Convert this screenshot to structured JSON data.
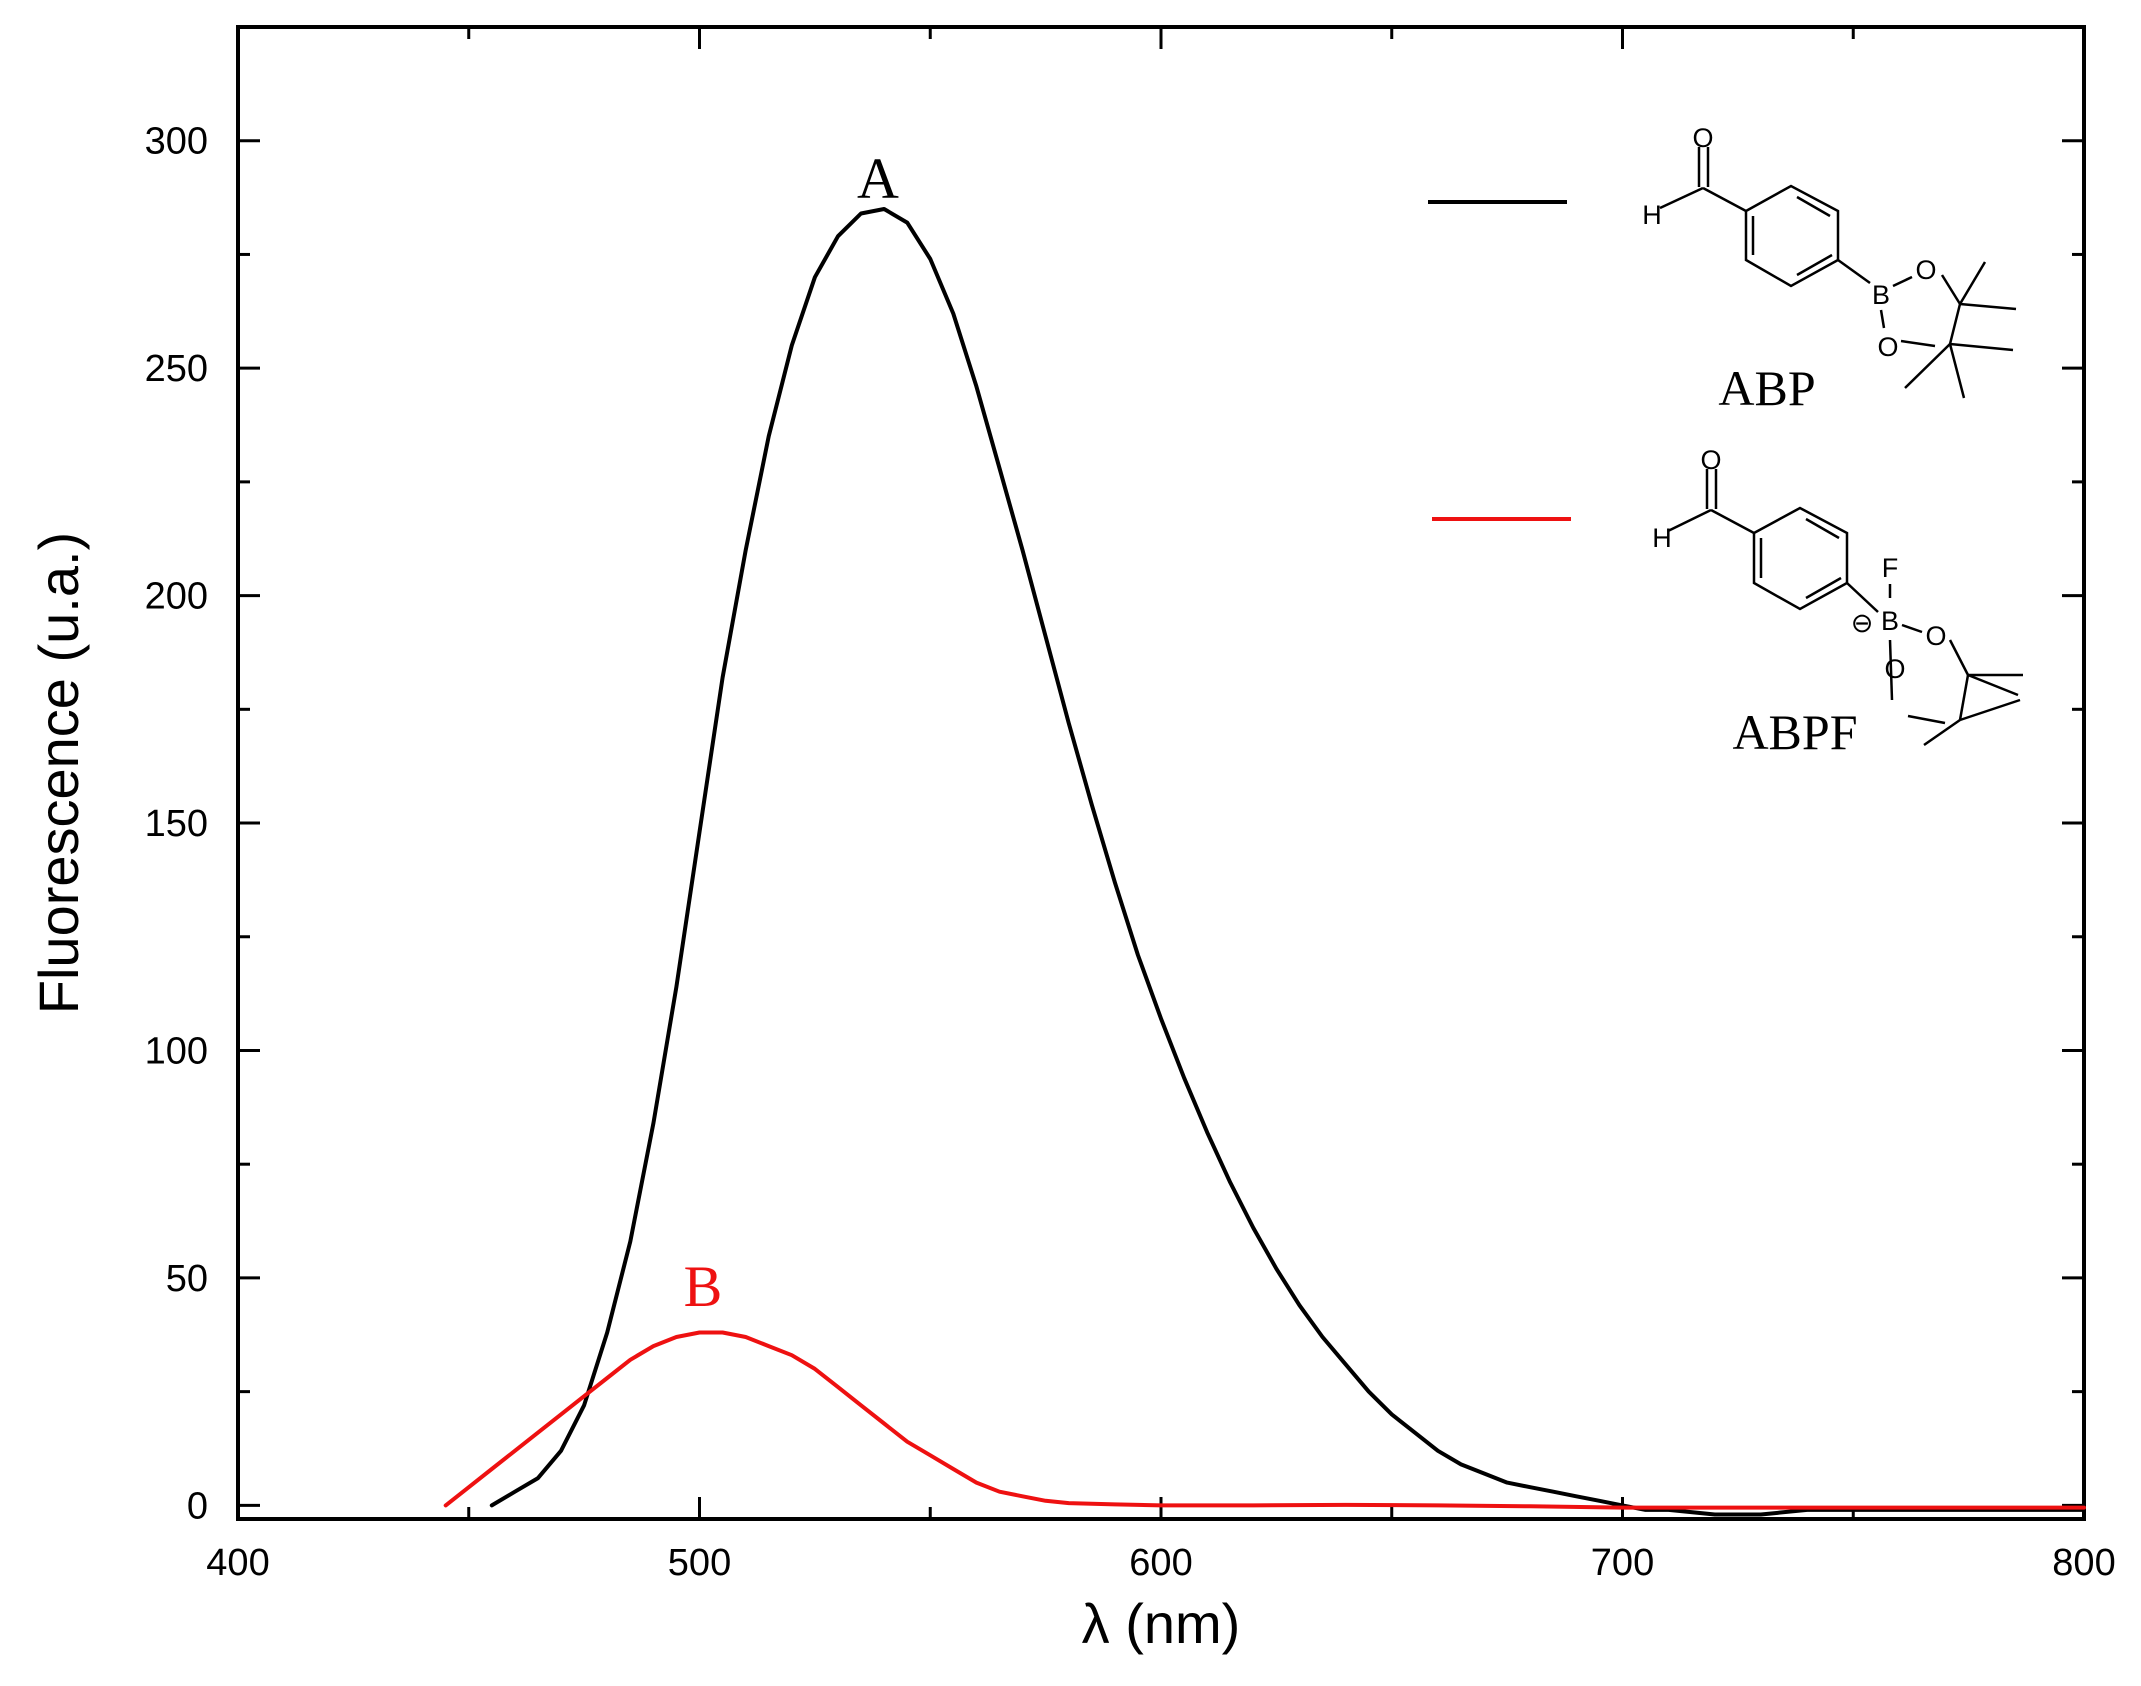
{
  "chart_data": {
    "type": "line",
    "xlabel": "λ (nm)",
    "ylabel": "Fluorescence (u.a.)",
    "xlim": [
      400,
      800
    ],
    "ylim": [
      -3,
      325
    ],
    "x_ticks": [
      "400",
      "500",
      "600",
      "700",
      "800"
    ],
    "y_ticks": [
      "0",
      "50",
      "100",
      "150",
      "200",
      "250",
      "300"
    ],
    "grid": false,
    "legend_position": "top-right",
    "series": [
      {
        "name": "ABP",
        "peak_label": "A",
        "color": "#000000",
        "x": [
          455,
          460,
          465,
          470,
          475,
          480,
          485,
          490,
          495,
          500,
          505,
          510,
          515,
          520,
          525,
          530,
          535,
          540,
          545,
          550,
          555,
          560,
          565,
          570,
          575,
          580,
          585,
          590,
          595,
          600,
          605,
          610,
          615,
          620,
          625,
          630,
          635,
          640,
          645,
          650,
          655,
          660,
          665,
          670,
          675,
          680,
          685,
          690,
          695,
          700,
          705,
          710,
          720,
          730,
          740,
          750,
          760,
          770,
          780,
          790,
          800
        ],
        "y": [
          0,
          3,
          6,
          12,
          22,
          38,
          58,
          84,
          114,
          148,
          182,
          210,
          235,
          255,
          270,
          279,
          284,
          285,
          282,
          274,
          262,
          246,
          228,
          210,
          191,
          172,
          154,
          137,
          121,
          107,
          94,
          82,
          71,
          61,
          52,
          44,
          37,
          31,
          25,
          20,
          16,
          12,
          9,
          7,
          5,
          4,
          3,
          2,
          1,
          0,
          -1,
          -1,
          -2,
          -2,
          -1,
          -1,
          -1,
          -1,
          -1,
          -1,
          -1
        ]
      },
      {
        "name": "ABPF",
        "peak_label": "B",
        "color": "#ee1111",
        "x": [
          445,
          450,
          455,
          460,
          465,
          470,
          475,
          480,
          485,
          490,
          495,
          500,
          505,
          510,
          515,
          520,
          525,
          530,
          535,
          540,
          545,
          550,
          555,
          560,
          565,
          570,
          575,
          580,
          590,
          600,
          620,
          640,
          660,
          680,
          700,
          720,
          740,
          760,
          780,
          800
        ],
        "y": [
          0,
          4,
          8,
          12,
          16,
          20,
          24,
          28,
          32,
          35,
          37,
          38,
          38,
          37,
          35,
          33,
          30,
          26,
          22,
          18,
          14,
          11,
          8,
          5,
          3,
          2,
          1,
          0.5,
          0.2,
          0,
          0,
          0.1,
          0,
          -0.2,
          -0.5,
          -0.5,
          -0.5,
          -0.5,
          -0.5,
          -0.5
        ]
      }
    ]
  },
  "legend": {
    "structures": [
      {
        "name": "ABP",
        "atoms": {
          "O_ald": "O",
          "H": "H",
          "B": "B",
          "O1": "O",
          "O2": "O"
        }
      },
      {
        "name": "ABPF",
        "atoms": {
          "O_ald": "O",
          "H": "H",
          "B": "B",
          "F": "F",
          "O1": "O",
          "O2": "O",
          "charge": "⊖"
        }
      }
    ]
  }
}
